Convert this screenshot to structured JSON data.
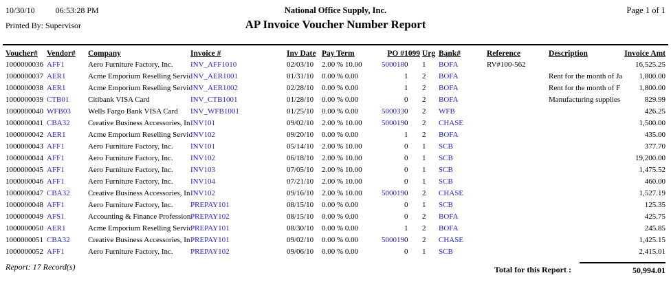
{
  "meta": {
    "date": "10/30/10",
    "time": "06:53:28 PM",
    "company_name": "National Office Supply, Inc.",
    "page_label": "Page 1 of 1",
    "printed_by": "Printed By: Supervisor",
    "report_title": "AP Invoice Voucher Number Report"
  },
  "colors": {
    "link_blue": "#2222CC",
    "text": "#000000",
    "background": "#FFFFFF"
  },
  "table": {
    "columns": [
      {
        "key": "voucher",
        "label": "Voucher#"
      },
      {
        "key": "vendor",
        "label": "Vendor#"
      },
      {
        "key": "company",
        "label": "Company"
      },
      {
        "key": "invoice",
        "label": "Invoice #"
      },
      {
        "key": "inv_date",
        "label": "Inv Date"
      },
      {
        "key": "pay_term",
        "label": "Pay Term"
      },
      {
        "key": "po",
        "label": "PO #"
      },
      {
        "key": "f1099",
        "label": "1099"
      },
      {
        "key": "urg",
        "label": "Urg"
      },
      {
        "key": "bank",
        "label": "Bank#"
      },
      {
        "key": "reference",
        "label": "Reference"
      },
      {
        "key": "description",
        "label": "Description"
      },
      {
        "key": "amount",
        "label": "Invoice Amt"
      }
    ],
    "rows": [
      {
        "voucher": "1000000036",
        "vendor": "AFF1",
        "company": "Aero Furniture Factory, Inc.",
        "invoice": "INV_AFF1010",
        "inv_date": "02/03/10",
        "pay_term": "2.00 % 10.00",
        "po": "500018",
        "f1099": "0",
        "urg": "1",
        "bank": "BOFA",
        "reference": "RV#100-562",
        "description": "",
        "amount": "16,525.25"
      },
      {
        "voucher": "1000000037",
        "vendor": "AER1",
        "company": "Acme Emporium Reselling Servic",
        "invoice": "INV_AER1001",
        "inv_date": "01/31/10",
        "pay_term": "0.00 % 0.00",
        "po": "",
        "f1099": "1",
        "urg": "2",
        "bank": "BOFA",
        "reference": "",
        "description": "Rent for the month of Ja",
        "amount": "1,800.00"
      },
      {
        "voucher": "1000000038",
        "vendor": "AER1",
        "company": "Acme Emporium Reselling Servic",
        "invoice": "INV_AER1002",
        "inv_date": "02/28/10",
        "pay_term": "0.00 % 0.00",
        "po": "",
        "f1099": "1",
        "urg": "2",
        "bank": "BOFA",
        "reference": "",
        "description": "Rent for the month of F",
        "amount": "1,800.00"
      },
      {
        "voucher": "1000000039",
        "vendor": "CTB01",
        "company": "Citibank VISA Card",
        "invoice": "INV_CTB1001",
        "inv_date": "01/28/10",
        "pay_term": "0.00 % 0.00",
        "po": "",
        "f1099": "0",
        "urg": "2",
        "bank": "BOFA",
        "reference": "",
        "description": "Manufacturing supplies",
        "amount": "829.99"
      },
      {
        "voucher": "1000000040",
        "vendor": "WFB03",
        "company": "Wells Fargo Bank VISA Card",
        "invoice": "INV_WFB1001",
        "inv_date": "01/25/10",
        "pay_term": "0.00 % 0.00",
        "po": "500033",
        "f1099": "0",
        "urg": "2",
        "bank": "WFB",
        "reference": "",
        "description": "",
        "amount": "426.25"
      },
      {
        "voucher": "1000000041",
        "vendor": "CBA32",
        "company": "Creative Business Accessories, In",
        "invoice": "INV101",
        "inv_date": "09/02/10",
        "pay_term": "2.00 % 10.00",
        "po": "500019",
        "f1099": "0",
        "urg": "2",
        "bank": "CHASE",
        "reference": "",
        "description": "",
        "amount": "1,500.00"
      },
      {
        "voucher": "1000000042",
        "vendor": "AER1",
        "company": "Acme Emporium Reselling Servic",
        "invoice": "INV102",
        "inv_date": "09/20/10",
        "pay_term": "0.00 % 0.00",
        "po": "",
        "f1099": "1",
        "urg": "2",
        "bank": "BOFA",
        "reference": "",
        "description": "",
        "amount": "435.00"
      },
      {
        "voucher": "1000000043",
        "vendor": "AFF1",
        "company": "Aero Furniture Factory, Inc.",
        "invoice": "INV101",
        "inv_date": "05/14/10",
        "pay_term": "2.00 % 10.00",
        "po": "",
        "f1099": "0",
        "urg": "1",
        "bank": "SCB",
        "reference": "",
        "description": "",
        "amount": "377.70"
      },
      {
        "voucher": "1000000044",
        "vendor": "AFF1",
        "company": "Aero Furniture Factory, Inc.",
        "invoice": "INV102",
        "inv_date": "06/18/10",
        "pay_term": "2.00 % 10.00",
        "po": "",
        "f1099": "0",
        "urg": "1",
        "bank": "SCB",
        "reference": "",
        "description": "",
        "amount": "19,200.00"
      },
      {
        "voucher": "1000000045",
        "vendor": "AFF1",
        "company": "Aero Furniture Factory, Inc.",
        "invoice": "INV103",
        "inv_date": "07/05/10",
        "pay_term": "2.00 % 10.00",
        "po": "",
        "f1099": "0",
        "urg": "1",
        "bank": "SCB",
        "reference": "",
        "description": "",
        "amount": "1,475.52"
      },
      {
        "voucher": "1000000046",
        "vendor": "AFF1",
        "company": "Aero Furniture Factory, Inc.",
        "invoice": "INV104",
        "inv_date": "07/21/10",
        "pay_term": "2.00 % 10.00",
        "po": "",
        "f1099": "0",
        "urg": "1",
        "bank": "SCB",
        "reference": "",
        "description": "",
        "amount": "460.00"
      },
      {
        "voucher": "1000000047",
        "vendor": "CBA32",
        "company": "Creative Business Accessories, In",
        "invoice": "INV102",
        "inv_date": "09/16/10",
        "pay_term": "2.00 % 10.00",
        "po": "500019",
        "f1099": "0",
        "urg": "2",
        "bank": "CHASE",
        "reference": "",
        "description": "",
        "amount": "1,527.19"
      },
      {
        "voucher": "1000000048",
        "vendor": "AFF1",
        "company": "Aero Furniture Factory, Inc.",
        "invoice": "PREPAY101",
        "inv_date": "08/15/10",
        "pay_term": "0.00 % 0.00",
        "po": "",
        "f1099": "0",
        "urg": "1",
        "bank": "SCB",
        "reference": "",
        "description": "",
        "amount": "125.35"
      },
      {
        "voucher": "1000000049",
        "vendor": "AFS1",
        "company": "Accounting & Finance Profession",
        "invoice": "PREPAY102",
        "inv_date": "08/15/10",
        "pay_term": "0.00 % 0.00",
        "po": "",
        "f1099": "0",
        "urg": "2",
        "bank": "BOFA",
        "reference": "",
        "description": "",
        "amount": "425.75"
      },
      {
        "voucher": "1000000050",
        "vendor": "AER1",
        "company": "Acme Emporium Reselling Servic",
        "invoice": "PREPAY101",
        "inv_date": "08/30/10",
        "pay_term": "0.00 % 0.00",
        "po": "",
        "f1099": "1",
        "urg": "2",
        "bank": "BOFA",
        "reference": "",
        "description": "",
        "amount": "245.85"
      },
      {
        "voucher": "1000000051",
        "vendor": "CBA32",
        "company": "Creative Business Accessories, In",
        "invoice": "PREPAY101",
        "inv_date": "09/02/10",
        "pay_term": "0.00 % 0.00",
        "po": "500019",
        "f1099": "0",
        "urg": "2",
        "bank": "CHASE",
        "reference": "",
        "description": "",
        "amount": "1,425.15"
      },
      {
        "voucher": "1000000052",
        "vendor": "AFF1",
        "company": "Aero Furniture Factory, Inc.",
        "invoice": "PREPAY102",
        "inv_date": "09/06/10",
        "pay_term": "0.00 % 0.00",
        "po": "",
        "f1099": "0",
        "urg": "1",
        "bank": "SCB",
        "reference": "",
        "description": "",
        "amount": "2,415.01"
      }
    ]
  },
  "footer": {
    "record_count": "Report: 17 Record(s)",
    "total_label": "Total for this Report :",
    "total_amount": "50,994.01"
  }
}
